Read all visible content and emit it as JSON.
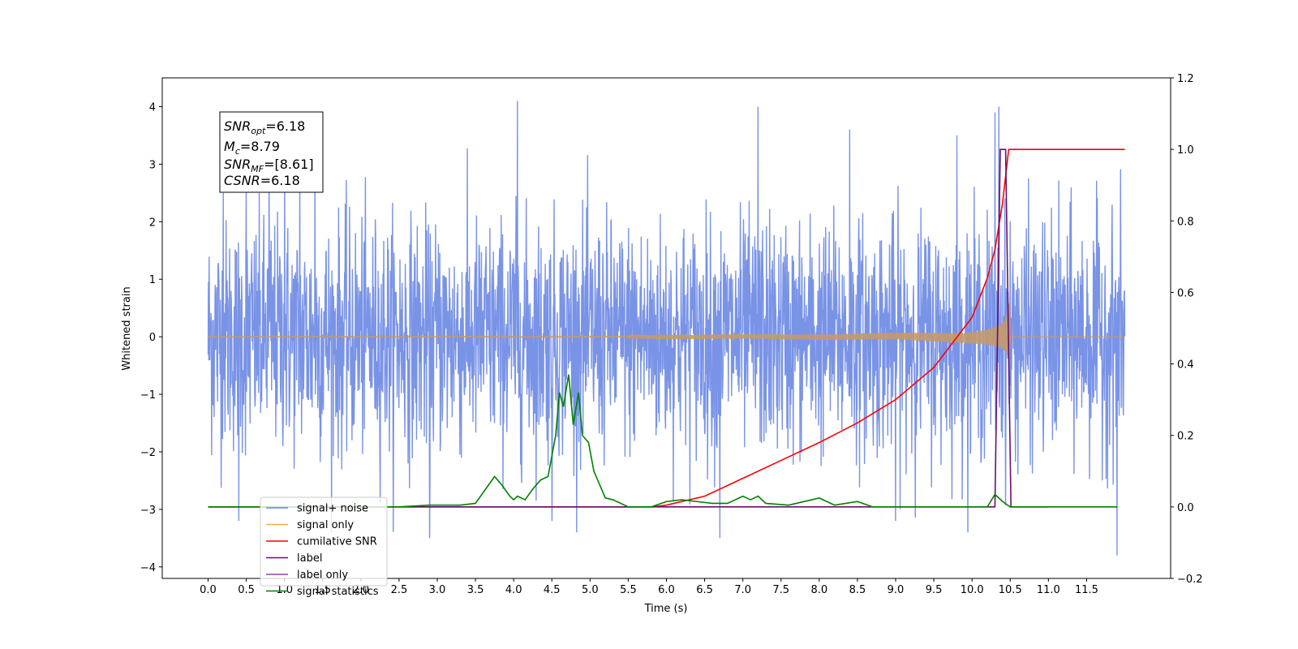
{
  "chart_data": {
    "type": "line",
    "xlabel": "Time (s)",
    "ylabel": "Whitened strain",
    "xlim": [
      -0.6,
      12.6
    ],
    "ylim": [
      -4.2,
      4.5
    ],
    "y2lim": [
      -0.2,
      1.2
    ],
    "x_ticks": [
      "0.0",
      "0.5",
      "1.0",
      "1.5",
      "2.0",
      "2.5",
      "3.0",
      "3.5",
      "4.0",
      "4.5",
      "5.0",
      "5.5",
      "6.0",
      "6.5",
      "7.0",
      "7.5",
      "8.0",
      "8.5",
      "9.0",
      "9.5",
      "10.0",
      "10.5",
      "11.0",
      "11.5"
    ],
    "y_ticks": [
      "4",
      "3",
      "2",
      "1",
      "0",
      "−1",
      "−2",
      "−3",
      "−4"
    ],
    "y2_ticks": [
      "1.2",
      "1.0",
      "0.8",
      "0.6",
      "0.4",
      "0.2",
      "0.0",
      "−0.2"
    ],
    "grid": false,
    "legend_position": "lower-left",
    "annotation": {
      "snr_opt": "6.18",
      "mc": "8.79",
      "snr_mf": "[8.61]",
      "csnr": "6.18"
    },
    "series": [
      {
        "name": "signal+ noise",
        "color": "#6a87e4",
        "axis": "left",
        "kind": "noise",
        "x_range": [
          0.0,
          12.0
        ],
        "std": 1.0,
        "peaks": [
          [
            0.2,
            2.5
          ],
          [
            0.4,
            -3.2
          ],
          [
            0.5,
            2.6
          ],
          [
            0.8,
            3.0
          ],
          [
            1.0,
            2.9
          ],
          [
            1.2,
            3.1
          ],
          [
            1.4,
            3.0
          ],
          [
            2.9,
            -3.5
          ],
          [
            4.05,
            4.1
          ],
          [
            4.5,
            -3.2
          ],
          [
            6.7,
            -3.5
          ],
          [
            7.2,
            4.0
          ],
          [
            8.4,
            3.6
          ],
          [
            9.0,
            -3.2
          ],
          [
            9.8,
            3.5
          ],
          [
            10.3,
            3.9
          ],
          [
            10.35,
            4.0
          ],
          [
            11.9,
            -3.8
          ]
        ]
      },
      {
        "name": "signal only",
        "color": "#f5b041",
        "axis": "left",
        "kind": "chirp",
        "x_range": [
          0.0,
          12.0
        ],
        "merger_time": 10.5,
        "peak_amplitude": 0.6
      },
      {
        "name": "cumilative SNR",
        "color": "#ff0000",
        "axis": "right",
        "points": [
          [
            0.0,
            0.0
          ],
          [
            5.8,
            0.0
          ],
          [
            6.0,
            0.005
          ],
          [
            6.5,
            0.03
          ],
          [
            7.0,
            0.08
          ],
          [
            7.5,
            0.13
          ],
          [
            8.0,
            0.18
          ],
          [
            8.5,
            0.235
          ],
          [
            9.0,
            0.3
          ],
          [
            9.5,
            0.39
          ],
          [
            10.0,
            0.53
          ],
          [
            10.2,
            0.64
          ],
          [
            10.3,
            0.72
          ],
          [
            10.4,
            0.85
          ],
          [
            10.48,
            1.0
          ],
          [
            12.0,
            1.0
          ]
        ]
      },
      {
        "name": "label",
        "color": "#6b0f6b",
        "axis": "right",
        "points": [
          [
            0.0,
            0.0
          ],
          [
            10.3,
            0.0
          ],
          [
            10.37,
            1.0
          ],
          [
            10.44,
            1.0
          ],
          [
            10.51,
            0.0
          ],
          [
            11.0,
            0.0
          ]
        ]
      },
      {
        "name": "label only",
        "color": "#8e44ad",
        "axis": "right",
        "points": []
      },
      {
        "name": "signal statistics",
        "color": "#008000",
        "axis": "right",
        "points": [
          [
            0.0,
            0.0
          ],
          [
            2.5,
            0.0
          ],
          [
            2.9,
            0.005
          ],
          [
            3.3,
            0.005
          ],
          [
            3.5,
            0.01
          ],
          [
            3.6,
            0.04
          ],
          [
            3.75,
            0.085
          ],
          [
            3.85,
            0.06
          ],
          [
            3.95,
            0.03
          ],
          [
            4.0,
            0.02
          ],
          [
            4.05,
            0.03
          ],
          [
            4.15,
            0.02
          ],
          [
            4.25,
            0.05
          ],
          [
            4.35,
            0.075
          ],
          [
            4.45,
            0.085
          ],
          [
            4.55,
            0.2
          ],
          [
            4.6,
            0.32
          ],
          [
            4.65,
            0.28
          ],
          [
            4.72,
            0.37
          ],
          [
            4.78,
            0.23
          ],
          [
            4.85,
            0.32
          ],
          [
            4.9,
            0.2
          ],
          [
            4.98,
            0.18
          ],
          [
            5.05,
            0.1
          ],
          [
            5.2,
            0.025
          ],
          [
            5.3,
            0.02
          ],
          [
            5.5,
            0.0
          ],
          [
            5.8,
            0.0
          ],
          [
            6.0,
            0.015
          ],
          [
            6.2,
            0.02
          ],
          [
            6.4,
            0.015
          ],
          [
            6.6,
            0.01
          ],
          [
            6.8,
            0.01
          ],
          [
            7.0,
            0.03
          ],
          [
            7.1,
            0.02
          ],
          [
            7.2,
            0.03
          ],
          [
            7.3,
            0.01
          ],
          [
            7.6,
            0.005
          ],
          [
            7.9,
            0.02
          ],
          [
            8.0,
            0.025
          ],
          [
            8.2,
            0.005
          ],
          [
            8.5,
            0.015
          ],
          [
            8.7,
            0.0
          ],
          [
            10.2,
            0.0
          ],
          [
            10.3,
            0.035
          ],
          [
            10.4,
            0.015
          ],
          [
            10.5,
            0.0
          ],
          [
            11.0,
            0.0
          ],
          [
            11.9,
            0.0
          ]
        ]
      }
    ]
  }
}
